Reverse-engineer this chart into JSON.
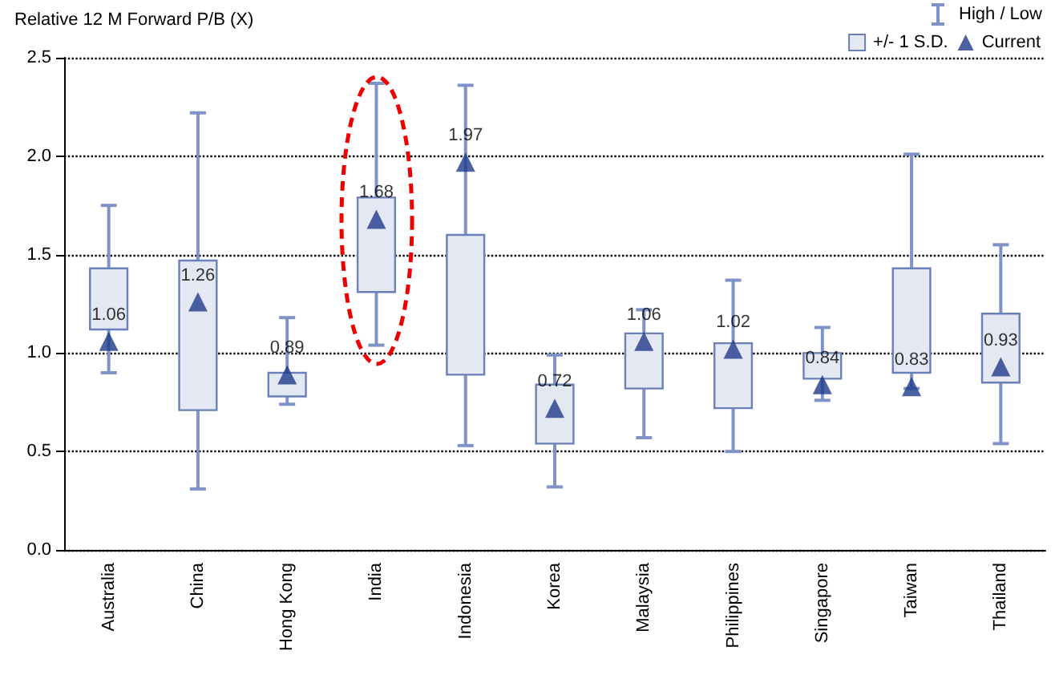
{
  "chart_data": {
    "type": "bar",
    "ylabel": "Relative 12 M Forward P/B (X)",
    "categories": [
      "Australia",
      "China",
      "Hong Kong",
      "India",
      "Indonesia",
      "Korea",
      "Malaysia",
      "Philippines",
      "Singapore",
      "Taiwan",
      "Thailand"
    ],
    "series": [
      {
        "name": "+/- 1 S.D.",
        "type": "bar",
        "color": "#e4e8f2",
        "base": [
          1.12,
          0.71,
          0.78,
          1.31,
          0.89,
          0.54,
          0.82,
          0.72,
          0.87,
          0.9,
          0.85
        ],
        "values": [
          0.31,
          0.76,
          0.12,
          0.48,
          0.71,
          0.3,
          0.28,
          0.33,
          0.13,
          0.53,
          0.35
        ],
        "errors": [
          [
            0.9,
            1.75
          ],
          [
            0.31,
            2.22
          ],
          [
            0.74,
            1.18
          ],
          [
            1.04,
            2.37
          ],
          [
            0.53,
            2.36
          ],
          [
            0.32,
            0.99
          ],
          [
            0.57,
            1.22
          ],
          [
            0.5,
            1.37
          ],
          [
            0.76,
            1.13
          ],
          [
            0.82,
            2.01
          ],
          [
            0.54,
            1.55
          ]
        ]
      },
      {
        "name": "Current",
        "type": "scatter",
        "color": "#1f3a8a",
        "marker": "triangle",
        "data_labels": true,
        "values": [
          1.06,
          1.26,
          0.89,
          1.68,
          1.97,
          0.72,
          1.06,
          1.02,
          0.84,
          0.83,
          0.93
        ]
      }
    ],
    "annotations": [
      "High / Low"
    ],
    "ylim": [
      0,
      2.5
    ],
    "yticks": [
      {
        "value": 0,
        "label": "0.0"
      },
      0.5,
      {
        "value": 1,
        "label": "1.0"
      },
      1.5,
      {
        "value": 2,
        "label": "2.0"
      },
      2.5
    ],
    "grid": "y",
    "legend": "top right"
  }
}
